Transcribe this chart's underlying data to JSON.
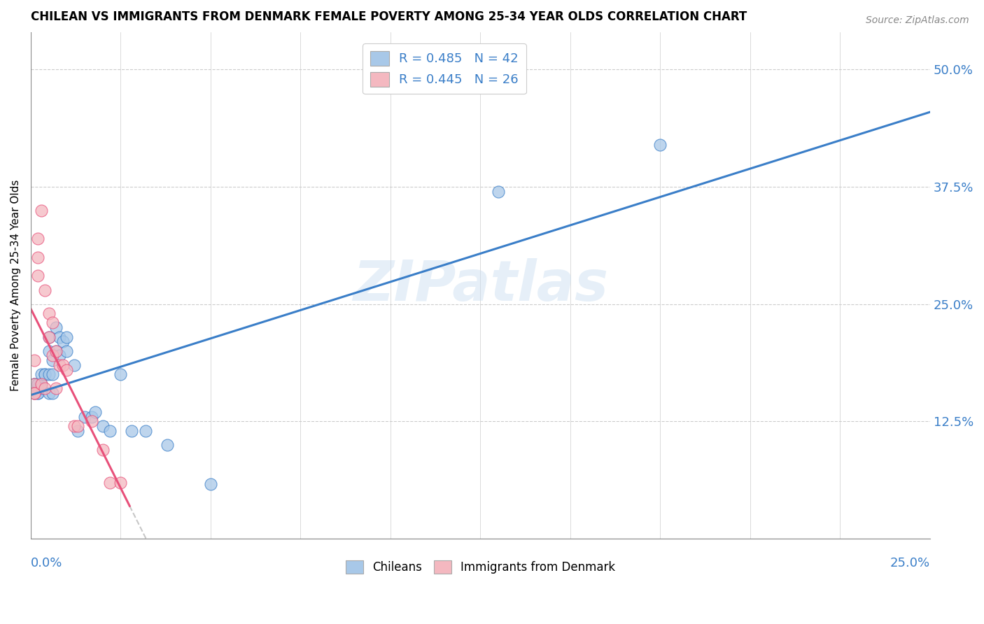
{
  "title": "CHILEAN VS IMMIGRANTS FROM DENMARK FEMALE POVERTY AMONG 25-34 YEAR OLDS CORRELATION CHART",
  "source": "Source: ZipAtlas.com",
  "ylabel": "Female Poverty Among 25-34 Year Olds",
  "yticks": [
    "12.5%",
    "25.0%",
    "37.5%",
    "50.0%"
  ],
  "ytick_vals": [
    0.125,
    0.25,
    0.375,
    0.5
  ],
  "xlim": [
    0.0,
    0.25
  ],
  "ylim": [
    0.0,
    0.54
  ],
  "legend_r_chileans": "R = 0.485",
  "legend_n_chileans": "N = 42",
  "legend_r_denmark": "R = 0.445",
  "legend_n_denmark": "N = 26",
  "color_chileans": "#a8c8e8",
  "color_denmark": "#f4b8c0",
  "color_chileans_line": "#3a7ec8",
  "color_denmark_line": "#e8507a",
  "color_denmark_dashed": "#d0a0c0",
  "watermark": "ZIPatlas",
  "chileans_x": [
    0.001,
    0.001,
    0.001,
    0.001,
    0.001,
    0.002,
    0.002,
    0.002,
    0.002,
    0.003,
    0.003,
    0.003,
    0.004,
    0.004,
    0.005,
    0.005,
    0.005,
    0.005,
    0.006,
    0.006,
    0.006,
    0.007,
    0.007,
    0.008,
    0.008,
    0.009,
    0.01,
    0.01,
    0.012,
    0.013,
    0.015,
    0.017,
    0.018,
    0.02,
    0.022,
    0.025,
    0.028,
    0.032,
    0.038,
    0.05,
    0.13,
    0.175
  ],
  "chileans_y": [
    0.155,
    0.16,
    0.16,
    0.165,
    0.165,
    0.16,
    0.155,
    0.165,
    0.155,
    0.165,
    0.175,
    0.16,
    0.175,
    0.175,
    0.155,
    0.175,
    0.2,
    0.215,
    0.155,
    0.175,
    0.19,
    0.2,
    0.225,
    0.195,
    0.215,
    0.21,
    0.2,
    0.215,
    0.185,
    0.115,
    0.13,
    0.13,
    0.135,
    0.12,
    0.115,
    0.175,
    0.115,
    0.115,
    0.1,
    0.058,
    0.37,
    0.42
  ],
  "denmark_x": [
    0.001,
    0.001,
    0.001,
    0.001,
    0.002,
    0.002,
    0.002,
    0.003,
    0.003,
    0.004,
    0.004,
    0.005,
    0.005,
    0.006,
    0.006,
    0.007,
    0.007,
    0.008,
    0.009,
    0.01,
    0.012,
    0.013,
    0.017,
    0.02,
    0.022,
    0.025
  ],
  "denmark_y": [
    0.165,
    0.155,
    0.19,
    0.155,
    0.28,
    0.3,
    0.32,
    0.35,
    0.165,
    0.265,
    0.16,
    0.24,
    0.215,
    0.23,
    0.195,
    0.16,
    0.2,
    0.185,
    0.185,
    0.18,
    0.12,
    0.12,
    0.125,
    0.095,
    0.06,
    0.06
  ]
}
